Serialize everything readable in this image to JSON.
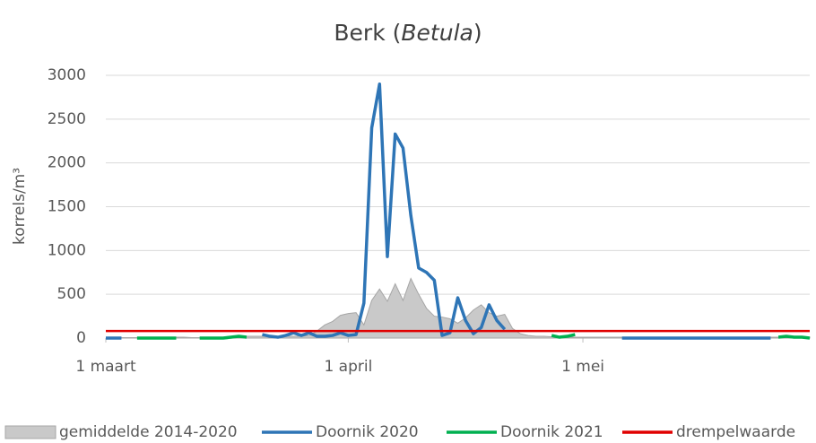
{
  "chart_data": {
    "type": "line",
    "title": [
      "Berk (",
      "Betula",
      ")"
    ],
    "ylabel": "korrels/m³",
    "x": [
      0,
      1,
      2,
      3,
      4,
      5,
      6,
      7,
      8,
      9,
      10,
      11,
      12,
      13,
      14,
      15,
      16,
      17,
      18,
      19,
      20,
      21,
      22,
      23,
      24,
      25,
      26,
      27,
      28,
      29,
      30,
      31,
      32,
      33,
      34,
      35,
      36,
      37,
      38,
      39,
      40,
      41,
      42,
      43,
      44,
      45,
      46,
      47,
      48,
      49,
      50,
      51,
      52,
      53,
      54,
      55,
      56,
      57,
      58,
      59,
      60,
      61,
      62,
      63,
      64,
      65,
      66,
      67,
      68,
      69,
      70,
      71,
      72,
      73,
      74,
      75,
      76,
      77,
      78,
      79,
      80,
      81,
      82,
      83,
      84,
      85,
      86,
      87,
      88,
      89,
      90
    ],
    "xlim": [
      0,
      90
    ],
    "xticks": [
      {
        "value": 0,
        "label": "1 maart"
      },
      {
        "value": 31,
        "label": "1 april"
      },
      {
        "value": 61,
        "label": "1 mei"
      }
    ],
    "ylim": [
      0,
      3000
    ],
    "yticks": [
      0,
      500,
      1000,
      1500,
      2000,
      2500,
      3000
    ],
    "grid": true,
    "legend": "bottom",
    "series": [
      {
        "name": "gemiddelde 2014-2020",
        "color": "#c9c9c9",
        "style": "area",
        "values": [
          0,
          0,
          5,
          5,
          5,
          5,
          5,
          10,
          10,
          10,
          10,
          5,
          5,
          5,
          10,
          10,
          15,
          15,
          20,
          20,
          20,
          20,
          20,
          20,
          20,
          20,
          30,
          80,
          150,
          190,
          260,
          280,
          290,
          150,
          430,
          560,
          420,
          620,
          430,
          680,
          500,
          340,
          250,
          240,
          220,
          170,
          230,
          320,
          380,
          290,
          250,
          270,
          110,
          50,
          30,
          20,
          20,
          15,
          10,
          10,
          10,
          10,
          10,
          10,
          10,
          10,
          10,
          10,
          10,
          10,
          10,
          10,
          10,
          10,
          10,
          10,
          10,
          10,
          10,
          10,
          10,
          10,
          10,
          10,
          10,
          10,
          10,
          10,
          10,
          10,
          10
        ]
      },
      {
        "name": "Doornik 2020",
        "color": "#2e75b6",
        "style": "line",
        "values": [
          0,
          0,
          0,
          null,
          null,
          null,
          null,
          null,
          null,
          null,
          null,
          null,
          null,
          null,
          null,
          null,
          null,
          null,
          null,
          null,
          40,
          20,
          10,
          30,
          60,
          30,
          60,
          20,
          20,
          30,
          60,
          30,
          40,
          400,
          2400,
          2900,
          930,
          2330,
          2170,
          1400,
          800,
          750,
          660,
          30,
          60,
          460,
          200,
          50,
          120,
          380,
          200,
          100,
          null,
          null,
          null,
          null,
          null,
          null,
          null,
          null,
          null,
          null,
          null,
          null,
          null,
          null,
          0,
          0,
          0,
          0,
          0,
          0,
          0,
          0,
          0,
          0,
          0,
          0,
          0,
          0,
          0,
          0,
          0,
          0,
          0,
          0,
          null,
          null,
          null,
          null,
          null
        ]
      },
      {
        "name": "Doornik 2021",
        "color": "#00b050",
        "style": "line",
        "values": [
          null,
          null,
          null,
          null,
          0,
          0,
          0,
          0,
          0,
          0,
          null,
          null,
          0,
          0,
          0,
          0,
          10,
          20,
          10,
          null,
          null,
          null,
          null,
          null,
          null,
          null,
          null,
          null,
          null,
          null,
          null,
          null,
          null,
          null,
          null,
          null,
          null,
          null,
          null,
          null,
          null,
          null,
          null,
          null,
          null,
          null,
          null,
          null,
          null,
          null,
          null,
          null,
          null,
          null,
          null,
          null,
          null,
          30,
          10,
          20,
          40,
          null,
          null,
          null,
          null,
          null,
          null,
          null,
          null,
          null,
          null,
          null,
          null,
          null,
          null,
          null,
          null,
          null,
          null,
          null,
          null,
          null,
          null,
          null,
          null,
          null,
          10,
          20,
          10,
          10,
          0
        ]
      },
      {
        "name": "drempelwaarde",
        "color": "#e00000",
        "style": "line",
        "x": [
          0,
          90
        ],
        "values": [
          80,
          80
        ]
      }
    ]
  }
}
